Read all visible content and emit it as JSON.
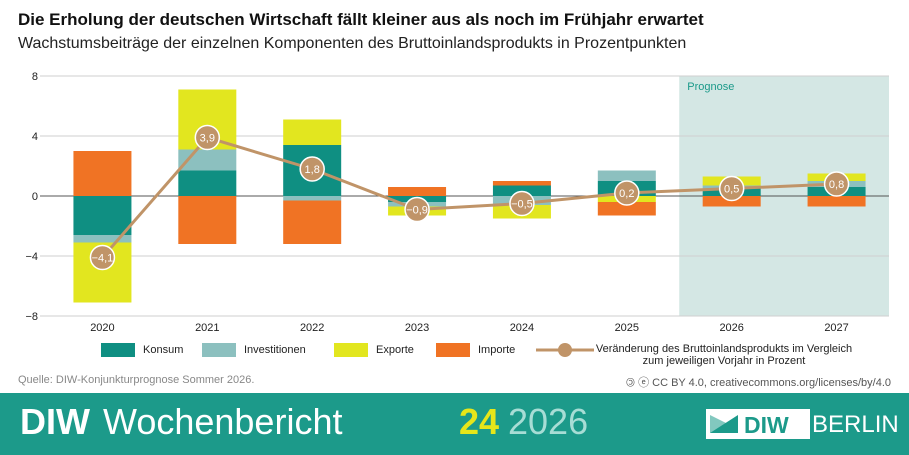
{
  "header": {
    "title": "Die Erholung der deutschen Wirtschaft fällt kleiner aus als noch im Frühjahr erwartet",
    "subtitle": "Wachstumsbeiträge der einzelnen Komponenten des Bruttoinlandsprodukts in Prozentpunkten"
  },
  "chart_data": {
    "type": "bar",
    "stacked": true,
    "categories": [
      "2020",
      "2021",
      "2022",
      "2023",
      "2024",
      "2025",
      "2026",
      "2027"
    ],
    "ylim": [
      -8,
      8
    ],
    "yticks": [
      8,
      4,
      0,
      -4,
      -8
    ],
    "ytick_labels": [
      "8",
      "4",
      "0",
      "−4",
      "−8"
    ],
    "grid": true,
    "forecast_label": "Prognose",
    "forecast_from": "2026",
    "series": [
      {
        "name": "Konsum",
        "color": "#0f8f82",
        "values": [
          -2.6,
          1.7,
          3.4,
          -0.4,
          0.7,
          1.0,
          0.5,
          0.6
        ]
      },
      {
        "name": "Investitionen",
        "color": "#8cc0bf",
        "values": [
          -0.5,
          1.4,
          -0.3,
          -0.3,
          -0.6,
          0.7,
          0.2,
          0.4
        ]
      },
      {
        "name": "Exporte",
        "color": "#e2e61f",
        "values": [
          -4.0,
          4.0,
          1.7,
          -0.6,
          -0.9,
          -0.4,
          0.6,
          0.5
        ]
      },
      {
        "name": "Importe",
        "color": "#f07324",
        "values": [
          3.0,
          -3.2,
          -2.9,
          0.6,
          0.3,
          -0.9,
          -0.7,
          -0.7
        ]
      }
    ],
    "line": {
      "name": "Veränderung des Bruttoinlandsprodukts im Vergleich zum jeweiligen Vorjahr in Prozent",
      "color": "#c09468",
      "values": [
        -4.1,
        3.9,
        1.8,
        -0.9,
        -0.5,
        0.2,
        0.5,
        0.8
      ],
      "labels": [
        "−4,1",
        "3,9",
        "1,8",
        "−0,9",
        "−0,5",
        "0,2",
        "0,5",
        "0,8"
      ]
    }
  },
  "legend": {
    "konsum": "Konsum",
    "investitionen": "Investitionen",
    "exporte": "Exporte",
    "importe": "Importe",
    "line": "Veränderung des Bruttoinlandsprodukts im Vergleich zum jeweiligen Vorjahr in Prozent"
  },
  "source": "Quelle: DIW-Konjunkturprognose Sommer 2026.",
  "license": "🄯 ⓔ CC BY 4.0, creativecommons.org/licenses/by/4.0",
  "footer": {
    "diw": "DIW",
    "word": "Wochenbericht",
    "number": "24",
    "year": "2026",
    "logo_text": "DIW",
    "city": "BERLIN"
  },
  "colors": {
    "footer_bg": "#1c9a8a",
    "forecast_bg": "#d4e7e4",
    "accent_yellow": "#e6e61a"
  }
}
